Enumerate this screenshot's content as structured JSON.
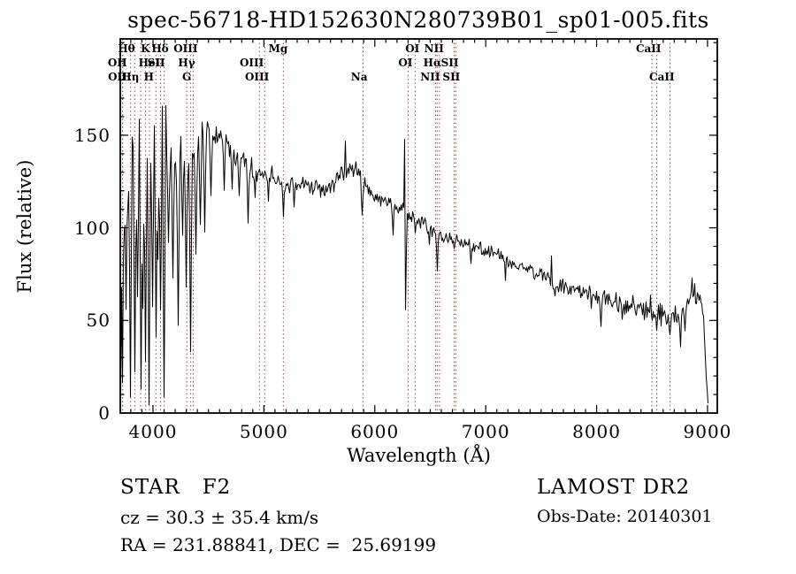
{
  "title": "spec-56718-HD152630N280739B01_sp01-005.fits",
  "annotations": {
    "class_type": "STAR   F2",
    "cz": "cz = 30.3 ± 35.4 km/s",
    "radec": "RA = 231.88841, DEC =  25.69199",
    "survey": "LAMOST DR2",
    "obs_date": "Obs-Date: 20140301"
  },
  "chart_data": {
    "type": "line",
    "title": "spec-56718-HD152630N280739B01_sp01-005.fits",
    "xlabel": "Wavelength (Å)",
    "ylabel": "Flux (relative)",
    "xlim": [
      3705,
      9088
    ],
    "ylim": [
      0,
      202
    ],
    "x_major_ticks": [
      4000,
      5000,
      6000,
      7000,
      8000,
      9000
    ],
    "x_minor_step": 100,
    "y_major_ticks": [
      0,
      50,
      100,
      150
    ],
    "y_minor_step": 10,
    "grid": false,
    "legend": "none",
    "line_color": "#000000",
    "marker_line_color": "#9a4646",
    "spectral_lines": [
      {
        "label": "Hθ",
        "wavelength": 3798,
        "row": 0
      },
      {
        "label": "K",
        "wavelength": 3933,
        "row": 0
      },
      {
        "label": "Hδ",
        "wavelength": 4101,
        "row": 0
      },
      {
        "label": "OIII",
        "wavelength": 4363,
        "row": 0
      },
      {
        "label": "Mg",
        "wavelength": 5175,
        "row": 0
      },
      {
        "label": "OI",
        "wavelength": 6363,
        "row": 0
      },
      {
        "label": "NII",
        "wavelength": 6583,
        "row": 0
      },
      {
        "label": "CaII",
        "wavelength": 8542,
        "row": 0
      },
      {
        "label": "OII",
        "wavelength": 3725,
        "row": 1
      },
      {
        "label": "HeI",
        "wavelength": 4026,
        "row": 1
      },
      {
        "label": "SII",
        "wavelength": 4068,
        "row": 1
      },
      {
        "label": "Hγ",
        "wavelength": 4340,
        "row": 1
      },
      {
        "label": "OIII",
        "wavelength": 4959,
        "row": 1
      },
      {
        "label": "OI",
        "wavelength": 6300,
        "row": 1
      },
      {
        "label": "Hα",
        "wavelength": 6562,
        "row": 1
      },
      {
        "label": "SII",
        "wavelength": 6716,
        "row": 1
      },
      {
        "label": "OII",
        "wavelength": 3727,
        "row": 2
      },
      {
        "label": "Hη",
        "wavelength": 3835,
        "row": 2
      },
      {
        "label": "H",
        "wavelength": 3968,
        "row": 2
      },
      {
        "label": "G",
        "wavelength": 4305,
        "row": 2
      },
      {
        "label": "OIII",
        "wavelength": 5007,
        "row": 2
      },
      {
        "label": "Na",
        "wavelength": 5894,
        "row": 2
      },
      {
        "label": "NII",
        "wavelength": 6548,
        "row": 2
      },
      {
        "label": "SII",
        "wavelength": 6730,
        "row": 2
      },
      {
        "label": "CaII",
        "wavelength": 8662,
        "row": 2
      },
      {
        "label": "",
        "wavelength": 3889,
        "row": 2
      },
      {
        "label": "",
        "wavelength": 8498,
        "row": 1
      }
    ],
    "series": [
      {
        "name": "flux",
        "continuum": [
          [
            3705,
            115
          ],
          [
            3720,
            135
          ],
          [
            3740,
            140
          ],
          [
            3760,
            138
          ],
          [
            3780,
            142
          ],
          [
            3800,
            144
          ],
          [
            3850,
            143
          ],
          [
            3900,
            146
          ],
          [
            3950,
            147
          ],
          [
            4000,
            149
          ],
          [
            4050,
            146
          ],
          [
            4100,
            144
          ],
          [
            4150,
            140
          ],
          [
            4200,
            139
          ],
          [
            4250,
            141
          ],
          [
            4300,
            142
          ],
          [
            4350,
            144
          ],
          [
            4400,
            147
          ],
          [
            4450,
            149
          ],
          [
            4500,
            150
          ],
          [
            4550,
            149
          ],
          [
            4600,
            148
          ],
          [
            4650,
            146
          ],
          [
            4700,
            143
          ],
          [
            4750,
            140
          ],
          [
            4800,
            137
          ],
          [
            4861,
            132
          ],
          [
            4900,
            132
          ],
          [
            4950,
            130
          ],
          [
            5000,
            129
          ],
          [
            5050,
            128
          ],
          [
            5100,
            127
          ],
          [
            5175,
            124
          ],
          [
            5250,
            124
          ],
          [
            5300,
            124
          ],
          [
            5400,
            122
          ],
          [
            5500,
            121
          ],
          [
            5600,
            123
          ],
          [
            5700,
            128
          ],
          [
            5780,
            133
          ],
          [
            5840,
            131
          ],
          [
            5894,
            126
          ],
          [
            5950,
            120
          ],
          [
            6000,
            117
          ],
          [
            6100,
            114
          ],
          [
            6200,
            111
          ],
          [
            6300,
            108
          ],
          [
            6400,
            104
          ],
          [
            6500,
            100
          ],
          [
            6563,
            96
          ],
          [
            6650,
            95
          ],
          [
            6750,
            93
          ],
          [
            6850,
            91
          ],
          [
            6950,
            89
          ],
          [
            7050,
            87
          ],
          [
            7150,
            84
          ],
          [
            7250,
            81
          ],
          [
            7350,
            78
          ],
          [
            7450,
            75
          ],
          [
            7550,
            73
          ],
          [
            7620,
            70
          ],
          [
            7700,
            68
          ],
          [
            7800,
            66
          ],
          [
            7900,
            64
          ],
          [
            8000,
            63
          ],
          [
            8100,
            61
          ],
          [
            8200,
            60
          ],
          [
            8300,
            59
          ],
          [
            8400,
            58
          ],
          [
            8500,
            56
          ],
          [
            8600,
            53
          ],
          [
            8700,
            52
          ],
          [
            8800,
            56
          ],
          [
            8860,
            64
          ],
          [
            8900,
            62
          ],
          [
            8940,
            60
          ],
          [
            8960,
            55
          ],
          [
            8980,
            30
          ],
          [
            9000,
            8
          ],
          [
            9012,
            1
          ]
        ],
        "noise_amplitude": [
          [
            3705,
            55
          ],
          [
            3750,
            45
          ],
          [
            3800,
            40
          ],
          [
            3850,
            38
          ],
          [
            3900,
            35
          ],
          [
            3950,
            33
          ],
          [
            4000,
            30
          ],
          [
            4100,
            22
          ],
          [
            4200,
            16
          ],
          [
            4300,
            14
          ],
          [
            4400,
            9
          ],
          [
            4500,
            6
          ],
          [
            4700,
            5
          ],
          [
            5000,
            4.5
          ],
          [
            5500,
            4
          ],
          [
            6000,
            3.5
          ],
          [
            6500,
            3
          ],
          [
            7000,
            3
          ],
          [
            7500,
            3.5
          ],
          [
            8000,
            5
          ],
          [
            8300,
            6
          ],
          [
            8600,
            7
          ],
          [
            8900,
            5
          ],
          [
            9012,
            1
          ]
        ],
        "absorption_features": [
          [
            3710,
            10
          ],
          [
            3727,
            15
          ],
          [
            3760,
            55
          ],
          [
            3798,
            8
          ],
          [
            3835,
            20
          ],
          [
            3860,
            60
          ],
          [
            3889,
            12
          ],
          [
            3910,
            55
          ],
          [
            3933,
            25
          ],
          [
            3968,
            4
          ],
          [
            4000,
            55
          ],
          [
            4026,
            40
          ],
          [
            4045,
            80
          ],
          [
            4068,
            55
          ],
          [
            4101,
            6
          ],
          [
            4140,
            90
          ],
          [
            4180,
            70
          ],
          [
            4227,
            45
          ],
          [
            4270,
            95
          ],
          [
            4300,
            65
          ],
          [
            4340,
            30
          ],
          [
            4385,
            85
          ],
          [
            4430,
            100
          ],
          [
            4470,
            95
          ],
          [
            4520,
            115
          ],
          [
            4640,
            120
          ],
          [
            4715,
            120
          ],
          [
            4780,
            115
          ],
          [
            4861,
            100
          ],
          [
            4920,
            115
          ],
          [
            5040,
            112
          ],
          [
            5175,
            105
          ],
          [
            5270,
            110
          ],
          [
            5890,
            104
          ],
          [
            6162,
            95
          ],
          [
            6280,
            55
          ],
          [
            6363,
            95
          ],
          [
            6495,
            88
          ],
          [
            6563,
            74
          ],
          [
            6717,
            86
          ],
          [
            6870,
            78
          ],
          [
            7180,
            70
          ],
          [
            7625,
            63
          ],
          [
            8040,
            46
          ],
          [
            8230,
            50
          ],
          [
            8430,
            48
          ],
          [
            8498,
            47
          ],
          [
            8542,
            44
          ],
          [
            8662,
            40
          ],
          [
            8760,
            33
          ],
          [
            8800,
            42
          ]
        ],
        "emission_spikes": [
          [
            5735,
            147
          ],
          [
            6268,
            148
          ],
          [
            7590,
            85
          ],
          [
            8862,
            73
          ],
          [
            8885,
            70
          ]
        ],
        "end_wavelength": 9012
      }
    ]
  }
}
